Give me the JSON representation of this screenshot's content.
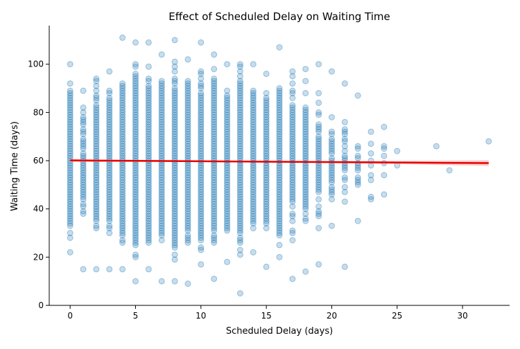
{
  "chart_data": {
    "type": "scatter",
    "title": "Effect of Scheduled Delay on Waiting Time",
    "xlabel": "Scheduled Delay (days)",
    "ylabel": "Waiting Time (days)",
    "xlim": [
      -1.6,
      33.6
    ],
    "ylim": [
      0,
      116
    ],
    "xticks": [
      0,
      5,
      10,
      15,
      20,
      25,
      30
    ],
    "yticks": [
      0,
      20,
      40,
      60,
      80,
      100
    ],
    "grid": false,
    "legend": "none",
    "point_color": "#1f77b4",
    "point_alpha": 0.25,
    "regression": {
      "type": "linear",
      "color": "#e60000",
      "ci_color": "#ff9a9a",
      "x_start": 0,
      "x_end": 32,
      "y_start": 60.1,
      "y_end": 59.0
    },
    "columns": [
      {
        "x": 0,
        "min": 22,
        "max": 100,
        "n": 70
      },
      {
        "x": 1,
        "min": 15,
        "max": 89,
        "n": 40
      },
      {
        "x": 2,
        "min": 15,
        "max": 94,
        "n": 60
      },
      {
        "x": 3,
        "min": 15,
        "max": 97,
        "n": 60
      },
      {
        "x": 4,
        "min": 15,
        "max": 111,
        "n": 75
      },
      {
        "x": 5,
        "min": 10,
        "max": 109,
        "n": 90
      },
      {
        "x": 6,
        "min": 15,
        "max": 109,
        "n": 90
      },
      {
        "x": 7,
        "min": 10,
        "max": 104,
        "n": 100
      },
      {
        "x": 8,
        "min": 10,
        "max": 110,
        "n": 110
      },
      {
        "x": 9,
        "min": 9,
        "max": 102,
        "n": 110
      },
      {
        "x": 10,
        "min": 17,
        "max": 109,
        "n": 110
      },
      {
        "x": 11,
        "min": 11,
        "max": 104,
        "n": 100
      },
      {
        "x": 12,
        "min": 18,
        "max": 100,
        "n": 95
      },
      {
        "x": 13,
        "min": 5,
        "max": 100,
        "n": 85
      },
      {
        "x": 14,
        "min": 22,
        "max": 100,
        "n": 80
      },
      {
        "x": 15,
        "min": 16,
        "max": 96,
        "n": 70
      },
      {
        "x": 16,
        "min": 20,
        "max": 107,
        "n": 65
      },
      {
        "x": 17,
        "min": 11,
        "max": 97,
        "n": 55
      },
      {
        "x": 18,
        "min": 14,
        "max": 98,
        "n": 50
      },
      {
        "x": 19,
        "min": 17,
        "max": 100,
        "n": 40
      },
      {
        "x": 20,
        "min": 33,
        "max": 97,
        "n": 28
      },
      {
        "x": 21,
        "min": 16,
        "max": 92,
        "n": 22
      },
      {
        "x": 22,
        "min": 35,
        "max": 87,
        "n": 14
      }
    ],
    "sparse_points": [
      {
        "x": 23,
        "y": 44
      },
      {
        "x": 23,
        "y": 45
      },
      {
        "x": 23,
        "y": 52
      },
      {
        "x": 23,
        "y": 54
      },
      {
        "x": 23,
        "y": 58
      },
      {
        "x": 23,
        "y": 60
      },
      {
        "x": 23,
        "y": 63
      },
      {
        "x": 23,
        "y": 67
      },
      {
        "x": 23,
        "y": 72
      },
      {
        "x": 24,
        "y": 46
      },
      {
        "x": 24,
        "y": 54
      },
      {
        "x": 24,
        "y": 59
      },
      {
        "x": 24,
        "y": 62
      },
      {
        "x": 24,
        "y": 65
      },
      {
        "x": 24,
        "y": 66
      },
      {
        "x": 24,
        "y": 74
      },
      {
        "x": 25,
        "y": 58
      },
      {
        "x": 25,
        "y": 64
      },
      {
        "x": 28,
        "y": 66
      },
      {
        "x": 29,
        "y": 56
      },
      {
        "x": 32,
        "y": 68
      }
    ]
  }
}
